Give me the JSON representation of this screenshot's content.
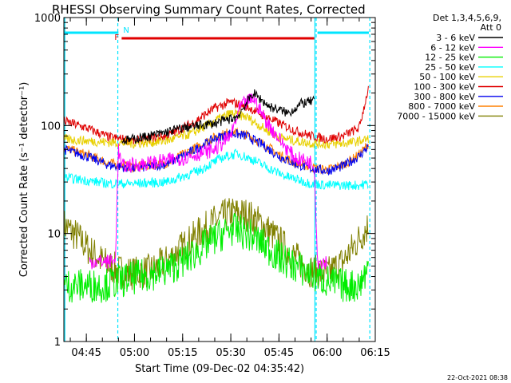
{
  "chart_data": {
    "type": "line",
    "title": "RHESSI Observing Summary Count Rates, Corrected",
    "xlabel": "Start Time (09-Dec-02 04:35:42)",
    "ylabel": "Corrected Count Rate (s⁻¹ detector⁻¹)",
    "yscale": "log",
    "ylim": [
      1,
      1000
    ],
    "xlim_minutes": [
      38,
      135
    ],
    "x_tick_labels": [
      "04:45",
      "05:00",
      "05:15",
      "05:30",
      "05:45",
      "06:00",
      "06:15"
    ],
    "x_tick_minutes": [
      45,
      60,
      75,
      90,
      105,
      120,
      135
    ],
    "y_tick_labels": [
      "1",
      "10",
      "100",
      "1000"
    ],
    "y_tick_values": [
      1,
      10,
      100,
      1000
    ],
    "legend_header": [
      "Det 1,3,4,5,6,9,",
      "Att 0"
    ],
    "legend_position": "right",
    "flag_bars": [
      {
        "label": "N",
        "color": "#00e5ff",
        "segments": [
          [
            38,
            55
          ],
          [
            117,
            133
          ]
        ]
      },
      {
        "label": "F",
        "color": "#e00000",
        "segments": [
          [
            56,
            116
          ]
        ]
      }
    ],
    "vertical_markers": [
      {
        "minute": 38.3,
        "style": "solid",
        "color": "#00e5ff"
      },
      {
        "minute": 54.8,
        "style": "dashed",
        "color": "#00e5ff"
      },
      {
        "minute": 116.2,
        "style": "solid",
        "color": "#00e5ff"
      },
      {
        "minute": 116.6,
        "style": "dashed",
        "color": "#00e5ff"
      },
      {
        "minute": 133.3,
        "style": "dashed",
        "color": "#00e5ff"
      }
    ],
    "series": [
      {
        "name": "3 - 6 keV",
        "color": "#000000",
        "x": [
          56,
          65,
          75,
          85,
          92,
          97,
          102,
          108,
          112,
          116
        ],
        "y": [
          72,
          80,
          95,
          105,
          120,
          200,
          150,
          130,
          160,
          170
        ]
      },
      {
        "name": "6 - 12 keV",
        "color": "#ff00ff",
        "x": [
          46,
          54,
          55,
          56,
          65,
          75,
          85,
          90,
          93,
          97,
          101,
          105,
          110,
          116,
          117,
          120
        ],
        "y": [
          5.5,
          5.5,
          60,
          42,
          45,
          50,
          60,
          80,
          150,
          180,
          110,
          75,
          50,
          45,
          5.5,
          5.5
        ]
      },
      {
        "name": "12 - 25 keV",
        "color": "#00ee00",
        "x": [
          38,
          50,
          58,
          65,
          70,
          75,
          80,
          85,
          90,
          95,
          100,
          105,
          110,
          115,
          120,
          125,
          130,
          133
        ],
        "y": [
          3.3,
          3.3,
          3.8,
          4.2,
          4.6,
          5.5,
          7,
          9,
          11,
          10,
          8,
          6,
          5,
          4.2,
          3.6,
          3.3,
          3.3,
          5
        ]
      },
      {
        "name": "25 - 50 keV",
        "color": "#00ffff",
        "x": [
          38,
          45,
          52,
          60,
          70,
          80,
          87,
          92,
          97,
          102,
          107,
          115,
          120,
          125,
          130,
          133
        ],
        "y": [
          33,
          31,
          29,
          29,
          30,
          38,
          50,
          55,
          48,
          40,
          34,
          29,
          28,
          28,
          28,
          29
        ]
      },
      {
        "name": "50 - 100 keV",
        "color": "#e8d000",
        "x": [
          38,
          45,
          52,
          60,
          70,
          78,
          85,
          90,
          95,
          100,
          105,
          110,
          116,
          122,
          128,
          133
        ],
        "y": [
          75,
          72,
          70,
          68,
          72,
          85,
          110,
          130,
          120,
          95,
          78,
          72,
          68,
          67,
          70,
          75
        ]
      },
      {
        "name": "100 - 300 keV",
        "color": "#e00000",
        "x": [
          38,
          45,
          52,
          60,
          70,
          78,
          85,
          90,
          95,
          100,
          105,
          110,
          115,
          120,
          125,
          130,
          133
        ],
        "y": [
          110,
          95,
          78,
          72,
          80,
          105,
          145,
          165,
          150,
          125,
          105,
          90,
          80,
          75,
          80,
          95,
          230
        ]
      },
      {
        "name": "300 - 800 keV",
        "color": "#0000ee",
        "x": [
          38,
          45,
          52,
          60,
          70,
          78,
          85,
          90,
          95,
          100,
          105,
          110,
          115,
          120,
          125,
          130,
          133
        ],
        "y": [
          60,
          52,
          43,
          40,
          44,
          58,
          76,
          85,
          80,
          66,
          52,
          44,
          40,
          38,
          42,
          52,
          65
        ]
      },
      {
        "name": "800 - 7000 keV",
        "color": "#ff8000",
        "x": [
          38,
          45,
          52,
          60,
          70,
          78,
          85,
          90,
          95,
          100,
          105,
          110,
          115,
          120,
          125,
          130,
          133
        ],
        "y": [
          62,
          54,
          45,
          41,
          45,
          60,
          78,
          88,
          82,
          68,
          54,
          45,
          41,
          39,
          43,
          54,
          68
        ]
      },
      {
        "name": "7000 - 15000 keV",
        "color": "#808000",
        "x": [
          38,
          42,
          46,
          50,
          55,
          60,
          65,
          70,
          75,
          80,
          85,
          90,
          95,
          100,
          105,
          110,
          115,
          120,
          125,
          130,
          133
        ],
        "y": [
          12,
          9.5,
          7,
          5.5,
          4.5,
          4.3,
          4.5,
          5.5,
          7.5,
          10,
          13,
          15.5,
          15,
          12,
          8.5,
          6,
          4.5,
          4.2,
          5.5,
          9,
          12
        ]
      }
    ]
  },
  "footer": {
    "timestamp": "22-Oct-2021 08:38"
  }
}
